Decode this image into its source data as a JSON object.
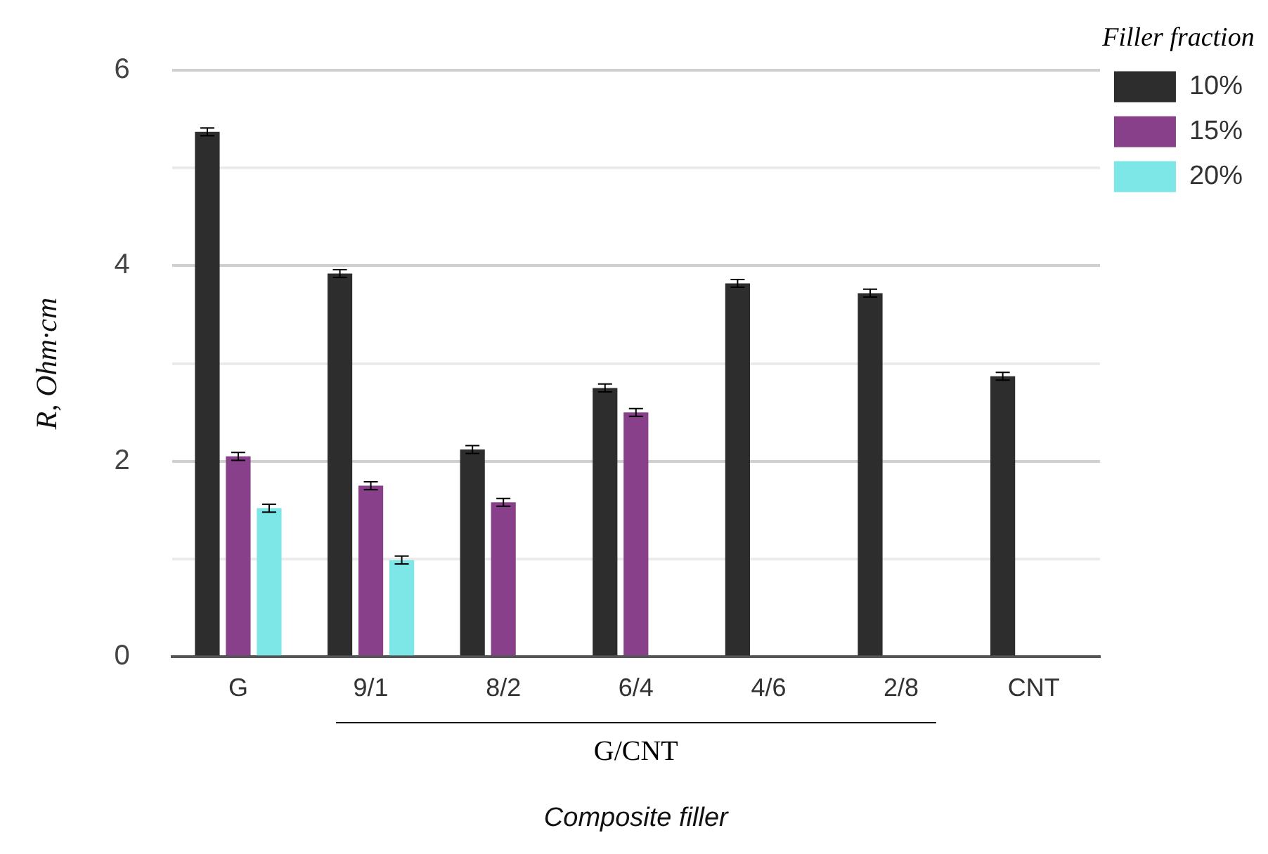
{
  "chart_data": {
    "type": "bar",
    "categories": [
      "G",
      "9/1",
      "8/2",
      "6/4",
      "4/6",
      "2/8",
      "CNT"
    ],
    "series": [
      {
        "name": "10%",
        "color": "#2d2d2d",
        "values": [
          5.37,
          3.92,
          2.12,
          2.75,
          3.82,
          3.72,
          2.87
        ],
        "errors": [
          0.04,
          0.04,
          0.04,
          0.04,
          0.04,
          0.04,
          0.04
        ]
      },
      {
        "name": "15%",
        "color": "#88408a",
        "values": [
          2.05,
          1.75,
          1.58,
          2.5,
          null,
          null,
          null
        ],
        "errors": [
          0.04,
          0.04,
          0.04,
          0.04,
          null,
          null,
          null
        ]
      },
      {
        "name": "20%",
        "color": "#7de6e6",
        "values": [
          1.52,
          0.99,
          null,
          null,
          null,
          null,
          null
        ],
        "errors": [
          0.04,
          0.04,
          null,
          null,
          null,
          null,
          null
        ]
      }
    ],
    "ylabel": "R, Ohm·cm",
    "xlabel": "Composite filler",
    "legend_title": "Filler fraction",
    "annotations": [
      "G/CNT"
    ],
    "ylim": [
      0,
      6
    ],
    "yticks": [
      0,
      {
        "value": 1,
        "label": null
      },
      2,
      {
        "value": 3,
        "label": null
      },
      4,
      {
        "value": 5,
        "label": null
      },
      6
    ],
    "grid": "y",
    "legend": "top right"
  }
}
